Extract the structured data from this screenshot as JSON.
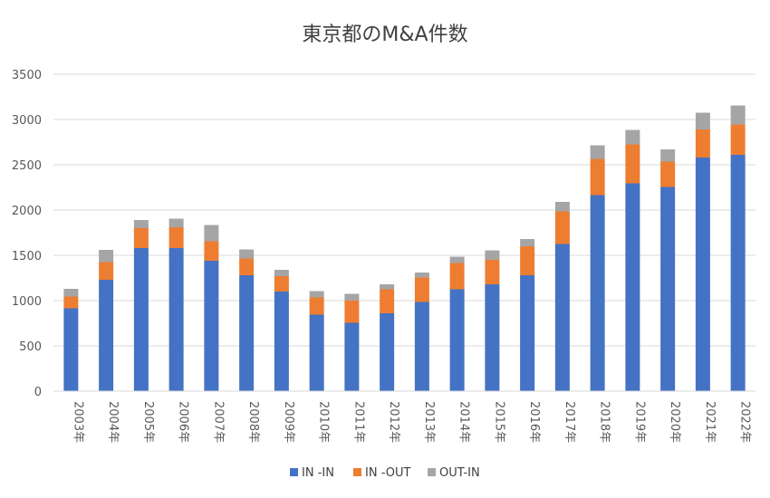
{
  "chart_data": {
    "type": "bar",
    "stacked": true,
    "title": "東京都のM&A件数",
    "xlabel": "",
    "ylabel": "",
    "ylim": [
      0,
      3500
    ],
    "yticks": [
      0,
      500,
      1000,
      1500,
      2000,
      2500,
      3000,
      3500
    ],
    "grid": true,
    "legend_position": "bottom",
    "categories": [
      "2003年",
      "2004年",
      "2005年",
      "2006年",
      "2007年",
      "2008年",
      "2009年",
      "2010年",
      "2011年",
      "2012年",
      "2013年",
      "2014年",
      "2015年",
      "2016年",
      "2017年",
      "2018年",
      "2019年",
      "2020年",
      "2021年",
      "2022年"
    ],
    "series": [
      {
        "name": "IN -IN",
        "color": "#4472C4",
        "values": [
          915,
          1230,
          1580,
          1580,
          1440,
          1280,
          1100,
          845,
          755,
          860,
          985,
          1125,
          1180,
          1280,
          1625,
          2165,
          2295,
          2255,
          2580,
          2610
        ]
      },
      {
        "name": "IN -OUT",
        "color": "#ED7D31",
        "values": [
          130,
          195,
          220,
          230,
          215,
          185,
          170,
          190,
          245,
          265,
          270,
          290,
          270,
          320,
          360,
          400,
          430,
          280,
          310,
          335
        ]
      },
      {
        "name": "OUT-IN",
        "color": "#A5A5A5",
        "values": [
          85,
          135,
          90,
          95,
          180,
          100,
          70,
          70,
          75,
          55,
          55,
          70,
          105,
          80,
          105,
          150,
          160,
          135,
          185,
          210
        ]
      }
    ]
  }
}
